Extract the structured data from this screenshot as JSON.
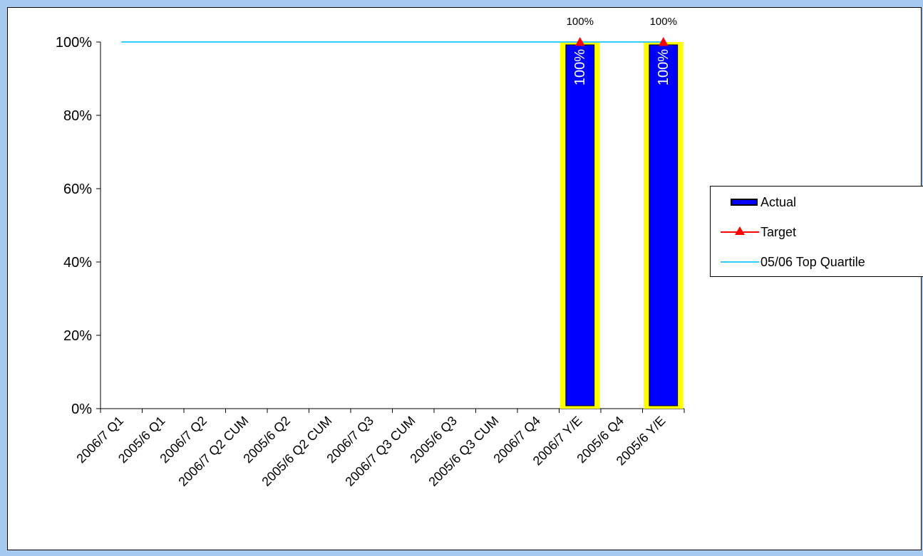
{
  "chart_data": {
    "type": "bar",
    "title": "",
    "xlabel": "",
    "ylabel": "",
    "ylim": [
      0,
      1
    ],
    "y_ticks": [
      "0%",
      "20%",
      "40%",
      "60%",
      "80%",
      "100%"
    ],
    "y_tick_values": [
      0,
      0.2,
      0.4,
      0.6,
      0.8,
      1.0
    ],
    "categories": [
      "2006/7 Q1",
      "2005/6 Q1",
      "2006/7 Q2",
      "2006/7 Q2 CUM",
      "2005/6 Q2",
      "2005/6 Q2 CUM",
      "2006/7 Q3",
      "2006/7 Q3 CUM",
      "2005/6 Q3",
      "2005/6 Q3 CUM",
      "2006/7 Q4",
      "2006/7 Y/E",
      "2005/6 Q4",
      "2005/6 Y/E"
    ],
    "series": [
      {
        "name": "Actual",
        "type": "bar",
        "color": "#0000ff",
        "highlight_color": "#ffff00",
        "values": [
          null,
          null,
          null,
          null,
          null,
          null,
          null,
          null,
          null,
          null,
          null,
          1.0,
          null,
          1.0
        ],
        "labels": [
          "",
          "",
          "",
          "",
          "",
          "",
          "",
          "",
          "",
          "",
          "",
          "100%",
          "",
          "100%"
        ]
      },
      {
        "name": "Target",
        "type": "line-marker",
        "color": "#ff0000",
        "marker": "triangle",
        "values": [
          null,
          null,
          null,
          null,
          null,
          null,
          null,
          null,
          null,
          null,
          null,
          1.0,
          null,
          1.0
        ],
        "labels": [
          "",
          "",
          "",
          "",
          "",
          "",
          "",
          "",
          "",
          "",
          "",
          "100%",
          "",
          "100%"
        ]
      },
      {
        "name": "05/06 Top Quartile",
        "type": "line",
        "color": "#33ccff",
        "values": [
          1.0,
          1.0,
          1.0,
          1.0,
          1.0,
          1.0,
          1.0,
          1.0,
          1.0,
          1.0,
          1.0,
          1.0,
          1.0,
          1.0
        ]
      }
    ],
    "legend": {
      "position": "right",
      "items": [
        {
          "label": "Actual",
          "key": "bar"
        },
        {
          "label": "Target",
          "key": "triangle-line"
        },
        {
          "label": "05/06 Top Quartile",
          "key": "line"
        }
      ]
    },
    "grid": false
  }
}
